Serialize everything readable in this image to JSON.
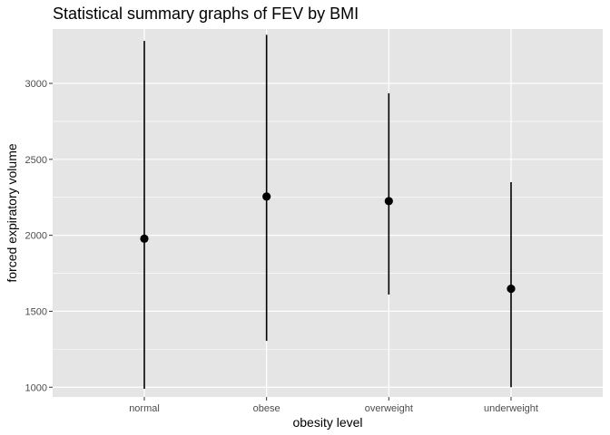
{
  "chart_data": {
    "type": "scatter",
    "title": "Statistical summary graphs of FEV by BMI",
    "xlabel": "obesity level",
    "ylabel": "forced expiratory volume",
    "categories": [
      "normal",
      "obese",
      "overweight",
      "underweight"
    ],
    "series": [
      {
        "points": [
          {
            "category": "normal",
            "y": 1978,
            "ymin": 990,
            "ymax": 3280
          },
          {
            "category": "obese",
            "y": 2255,
            "ymin": 1305,
            "ymax": 3320
          },
          {
            "category": "overweight",
            "y": 2225,
            "ymin": 1610,
            "ymax": 2935
          },
          {
            "category": "underweight",
            "y": 1648,
            "ymin": 1000,
            "ymax": 2350
          }
        ]
      }
    ],
    "yticks": [
      1000,
      1500,
      2000,
      2500,
      3000
    ],
    "ylim": [
      936,
      3358
    ],
    "grid": true,
    "legend": "none",
    "colors": {
      "panel": "#e5e5e5",
      "grid_major": "#ffffff",
      "marker": "#000000",
      "tick_text": "#4d4d4d"
    }
  }
}
